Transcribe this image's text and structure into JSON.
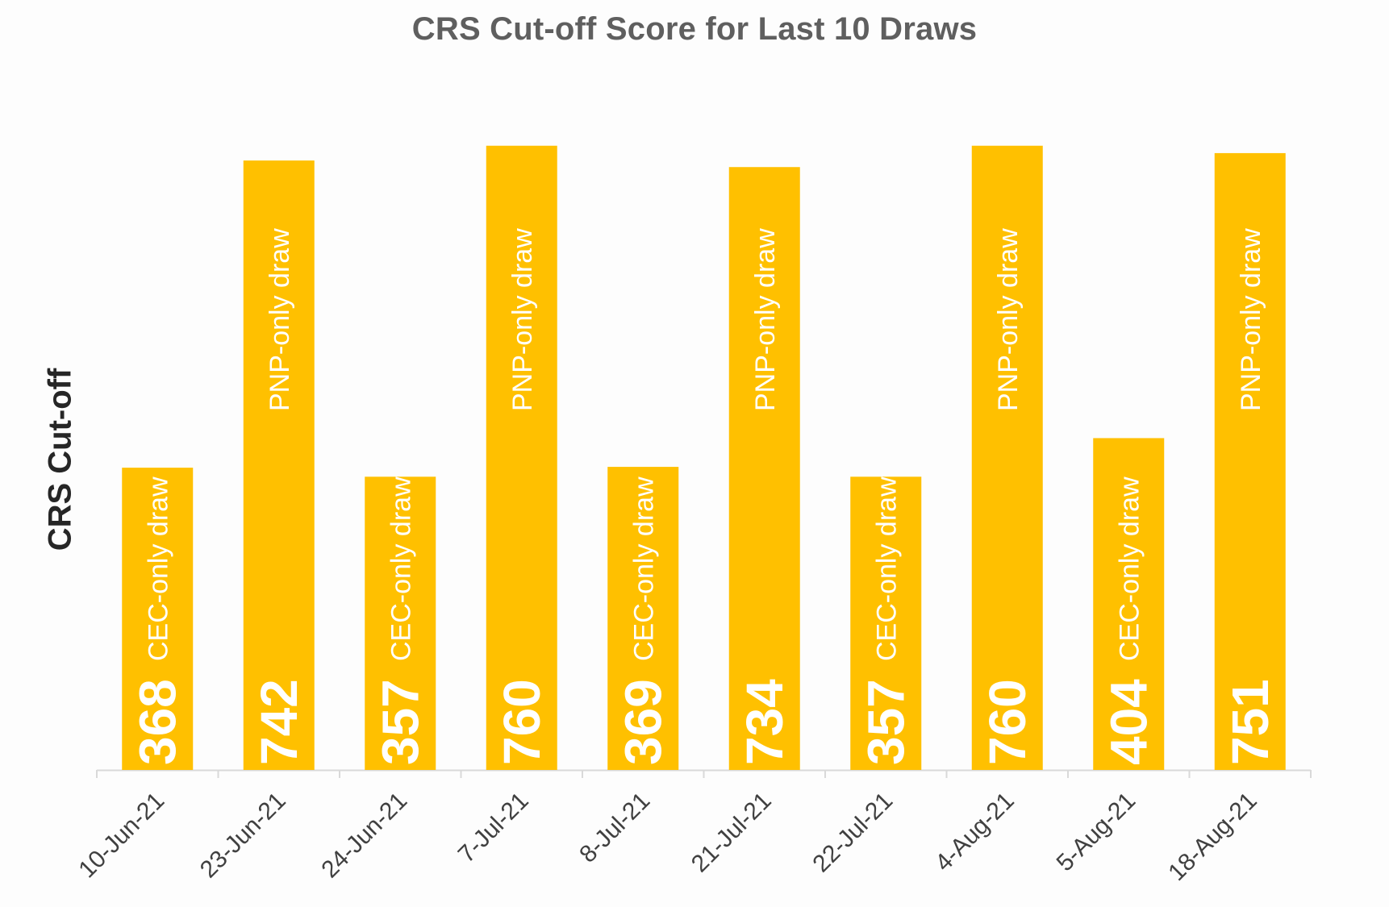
{
  "chart_data": {
    "type": "bar",
    "title": "CRS Cut-off Score for Last 10 Draws",
    "ylabel": "CRS Cut-off",
    "xlabel": "",
    "categories": [
      "10-Jun-21",
      "23-Jun-21",
      "24-Jun-21",
      "7-Jul-21",
      "8-Jul-21",
      "21-Jul-21",
      "22-Jul-21",
      "4-Aug-21",
      "5-Aug-21",
      "18-Aug-21"
    ],
    "values": [
      368,
      742,
      357,
      760,
      369,
      734,
      357,
      760,
      404,
      751
    ],
    "bar_labels": [
      "CEC-only draw",
      "PNP-only draw",
      "CEC-only draw",
      "PNP-only draw",
      "CEC-only draw",
      "PNP-only draw",
      "CEC-only draw",
      "PNP-only draw",
      "CEC-only draw",
      "PNP-only draw"
    ],
    "ylim": [
      0,
      800
    ],
    "grid": false,
    "legend": "none",
    "bar_color": "#FFC000"
  }
}
